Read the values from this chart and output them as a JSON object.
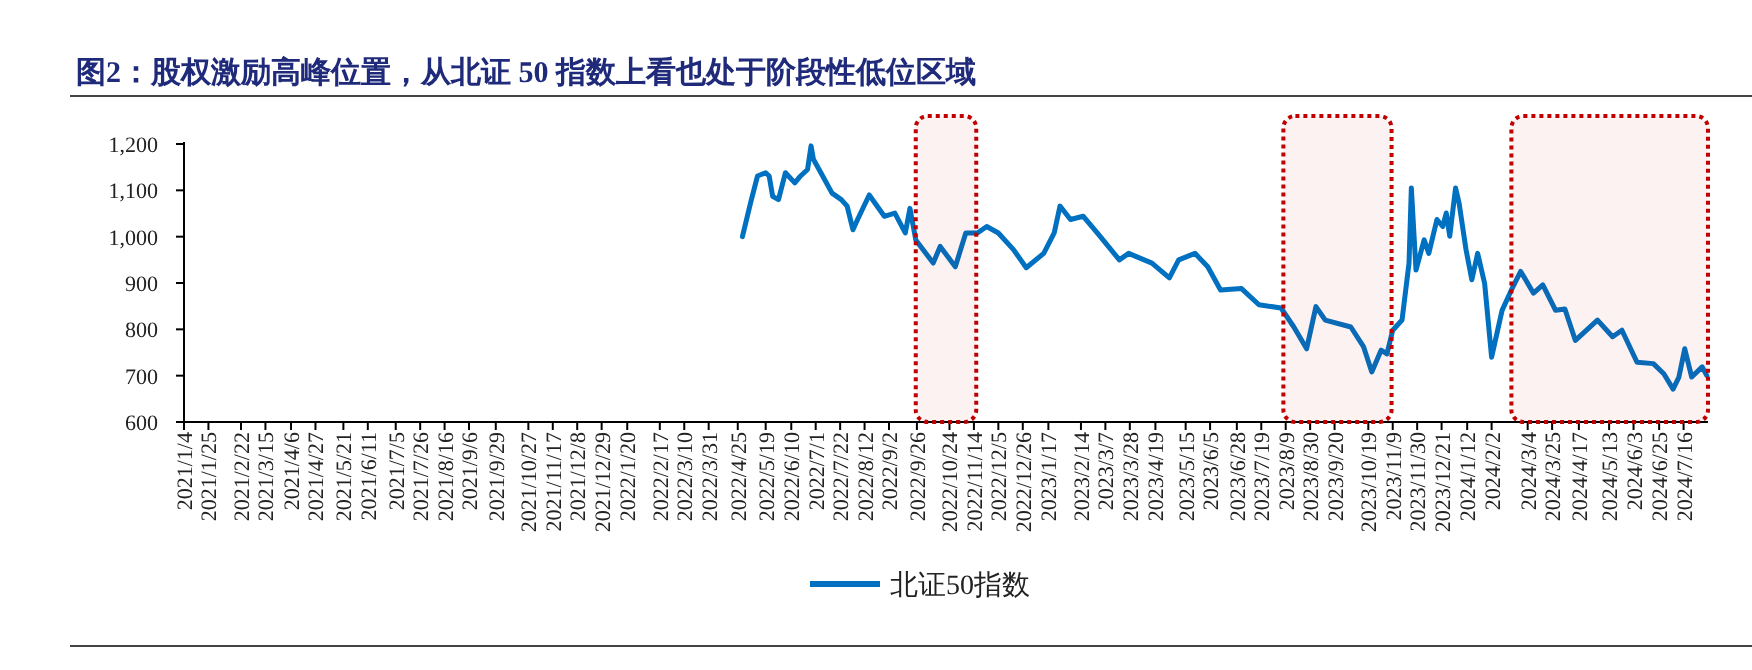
{
  "chart_data": {
    "type": "line",
    "title": "图2：股权激励高峰位置，从北证 50 指数上看也处于阶段性低位区域",
    "xlim": [
      "2021-01-04",
      "2024-08-06"
    ],
    "xticks": [
      {
        "value": "2021-01-04",
        "label": "2021/1/4"
      },
      {
        "value": "2021-01-25",
        "label": "2021/1/25"
      },
      {
        "value": "2021-02-22",
        "label": "2021/2/22"
      },
      {
        "value": "2021-03-15",
        "label": "2021/3/15"
      },
      {
        "value": "2021-04-06",
        "label": "2021/4/6"
      },
      {
        "value": "2021-04-27",
        "label": "2021/4/27"
      },
      {
        "value": "2021-05-21",
        "label": "2021/5/21"
      },
      {
        "value": "2021-06-11",
        "label": "2021/6/11"
      },
      {
        "value": "2021-07-05",
        "label": "2021/7/5"
      },
      {
        "value": "2021-07-26",
        "label": "2021/7/26"
      },
      {
        "value": "2021-08-16",
        "label": "2021/8/16"
      },
      {
        "value": "2021-09-06",
        "label": "2021/9/6"
      },
      {
        "value": "2021-09-29",
        "label": "2021/9/29"
      },
      {
        "value": "2021-10-27",
        "label": "2021/10/27"
      },
      {
        "value": "2021-11-17",
        "label": "2021/11/17"
      },
      {
        "value": "2021-12-08",
        "label": "2021/12/8"
      },
      {
        "value": "2021-12-29",
        "label": "2021/12/29"
      },
      {
        "value": "2022-01-20",
        "label": "2022/1/20"
      },
      {
        "value": "2022-02-17",
        "label": "2022/2/17"
      },
      {
        "value": "2022-03-10",
        "label": "2022/3/10"
      },
      {
        "value": "2022-03-31",
        "label": "2022/3/31"
      },
      {
        "value": "2022-04-25",
        "label": "2022/4/25"
      },
      {
        "value": "2022-05-19",
        "label": "2022/5/19"
      },
      {
        "value": "2022-06-10",
        "label": "2022/6/10"
      },
      {
        "value": "2022-07-01",
        "label": "2022/7/1"
      },
      {
        "value": "2022-07-22",
        "label": "2022/7/22"
      },
      {
        "value": "2022-08-12",
        "label": "2022/8/12"
      },
      {
        "value": "2022-09-02",
        "label": "2022/9/2"
      },
      {
        "value": "2022-09-26",
        "label": "2022/9/26"
      },
      {
        "value": "2022-10-24",
        "label": "2022/10/24"
      },
      {
        "value": "2022-11-14",
        "label": "2022/11/14"
      },
      {
        "value": "2022-12-05",
        "label": "2022/12/5"
      },
      {
        "value": "2022-12-26",
        "label": "2022/12/26"
      },
      {
        "value": "2023-01-17",
        "label": "2023/1/17"
      },
      {
        "value": "2023-02-14",
        "label": "2023/2/14"
      },
      {
        "value": "2023-03-07",
        "label": "2023/3/7"
      },
      {
        "value": "2023-03-28",
        "label": "2023/3/28"
      },
      {
        "value": "2023-04-19",
        "label": "2023/4/19"
      },
      {
        "value": "2023-05-15",
        "label": "2023/5/15"
      },
      {
        "value": "2023-06-05",
        "label": "2023/6/5"
      },
      {
        "value": "2023-06-28",
        "label": "2023/6/28"
      },
      {
        "value": "2023-07-19",
        "label": "2023/7/19"
      },
      {
        "value": "2023-08-09",
        "label": "2023/8/9"
      },
      {
        "value": "2023-08-30",
        "label": "2023/8/30"
      },
      {
        "value": "2023-09-20",
        "label": "2023/9/20"
      },
      {
        "value": "2023-10-19",
        "label": "2023/10/19"
      },
      {
        "value": "2023-11-09",
        "label": "2023/11/9"
      },
      {
        "value": "2023-11-30",
        "label": "2023/11/30"
      },
      {
        "value": "2023-12-21",
        "label": "2023/12/21"
      },
      {
        "value": "2024-01-12",
        "label": "2024/1/12"
      },
      {
        "value": "2024-02-02",
        "label": "2024/2/2"
      },
      {
        "value": "2024-03-04",
        "label": "2024/3/4"
      },
      {
        "value": "2024-03-25",
        "label": "2024/3/25"
      },
      {
        "value": "2024-04-17",
        "label": "2024/4/17"
      },
      {
        "value": "2024-05-13",
        "label": "2024/5/13"
      },
      {
        "value": "2024-06-03",
        "label": "2024/6/3"
      },
      {
        "value": "2024-06-25",
        "label": "2024/6/25"
      },
      {
        "value": "2024-07-16",
        "label": "2024/7/16"
      }
    ],
    "ylim": [
      600,
      1200
    ],
    "yticks": [
      600,
      700,
      800,
      900,
      {
        "value": 1000,
        "label": "1,000"
      },
      {
        "value": 1100,
        "label": "1,100"
      },
      {
        "value": 1200,
        "label": "1,200"
      }
    ],
    "grid": false,
    "legend": "bottom",
    "series": [
      {
        "name": "北证50指数",
        "color": "#0070c0",
        "x": [
          "2022-04-29",
          "2022-05-06",
          "2022-05-12",
          "2022-05-19",
          "2022-05-22",
          "2022-05-25",
          "2022-05-30",
          "2022-06-05",
          "2022-06-13",
          "2022-06-18",
          "2022-06-24",
          "2022-06-27",
          "2022-06-29",
          "2022-07-07",
          "2022-07-15",
          "2022-07-23",
          "2022-07-28",
          "2022-08-02",
          "2022-08-06",
          "2022-08-16",
          "2022-08-29",
          "2022-09-07",
          "2022-09-16",
          "2022-09-20",
          "2022-09-25",
          "2022-10-10",
          "2022-10-16",
          "2022-10-29",
          "2022-11-07",
          "2022-11-17",
          "2022-11-25",
          "2022-12-05",
          "2022-12-18",
          "2022-12-29",
          "2023-01-13",
          "2023-01-22",
          "2023-01-27",
          "2023-02-05",
          "2023-02-16",
          "2023-02-28",
          "2023-03-19",
          "2023-03-27",
          "2023-04-16",
          "2023-05-01",
          "2023-05-09",
          "2023-05-23",
          "2023-06-03",
          "2023-06-14",
          "2023-07-02",
          "2023-07-17",
          "2023-08-05",
          "2023-08-16",
          "2023-08-27",
          "2023-09-04",
          "2023-09-12",
          "2023-10-04",
          "2023-10-15",
          "2023-10-22",
          "2023-10-30",
          "2023-11-04",
          "2023-11-09",
          "2023-11-17",
          "2023-11-23",
          "2023-11-25",
          "2023-11-29",
          "2023-12-06",
          "2023-12-10",
          "2023-12-17",
          "2023-12-22",
          "2023-12-25",
          "2023-12-28",
          "2024-01-02",
          "2024-01-05",
          "2024-01-11",
          "2024-01-16",
          "2024-01-21",
          "2024-01-27",
          "2024-02-02",
          "2024-02-11",
          "2024-02-19",
          "2024-02-27",
          "2024-03-09",
          "2024-03-17",
          "2024-03-28",
          "2024-04-05",
          "2024-04-14",
          "2024-05-03",
          "2024-05-16",
          "2024-05-24",
          "2024-06-06",
          "2024-06-20",
          "2024-06-29",
          "2024-07-07",
          "2024-07-12",
          "2024-07-17",
          "2024-07-23",
          "2024-08-01",
          "2024-08-05"
        ],
        "values": [
          1000,
          1073,
          1131,
          1138,
          1131,
          1087,
          1080,
          1138,
          1116,
          1131,
          1145,
          1196,
          1167,
          1131,
          1094,
          1080,
          1066,
          1015,
          1037,
          1090,
          1044,
          1051,
          1008,
          1061,
          993,
          943,
          979,
          935,
          1008,
          1008,
          1022,
          1008,
          972,
          933,
          964,
          1008,
          1066,
          1037,
          1044,
          1008,
          950,
          964,
          943,
          911,
          950,
          964,
          935,
          885,
          888,
          853,
          846,
          805,
          758,
          849,
          820,
          805,
          762,
          708,
          755,
          747,
          798,
          820,
          943,
          1105,
          928,
          993,
          964,
          1037,
          1022,
          1051,
          1001,
          1105,
          1073,
          972,
          907,
          964,
          899,
          740,
          841,
          885,
          925,
          878,
          896,
          841,
          844,
          776,
          820,
          784,
          798,
          729,
          726,
          704,
          671,
          697,
          758,
          697,
          719,
          700
        ]
      }
    ],
    "bands": [
      {
        "axis": "x",
        "from": "2022-09-25",
        "to": "2022-11-16",
        "color": "#c00000"
      },
      {
        "axis": "x",
        "from": "2023-08-07",
        "to": "2023-11-08",
        "color": "#c00000"
      },
      {
        "axis": "x",
        "from": "2024-02-19",
        "to": "2024-08-06",
        "color": "#c00000"
      }
    ]
  }
}
